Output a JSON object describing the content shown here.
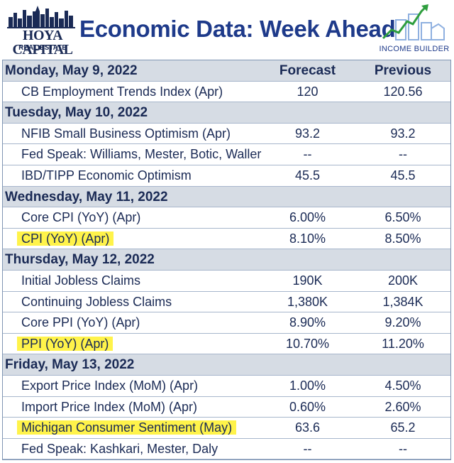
{
  "header": {
    "brand": "HOYA CAPITAL",
    "brand_sub": "REAL ESTATE",
    "title": "Economic Data: Week Ahead",
    "right_logo_label": "INCOME BUILDER"
  },
  "columns": {
    "forecast": "Forecast",
    "previous": "Previous"
  },
  "rows": [
    {
      "type": "day",
      "label": "Monday, May 9, 2022",
      "forecast": "Forecast",
      "previous": "Previous"
    },
    {
      "type": "item",
      "label": "CB Employment Trends Index (Apr)",
      "forecast": "120",
      "previous": "120.56",
      "highlight": false
    },
    {
      "type": "day",
      "label": "Tuesday, May 10, 2022",
      "forecast": "",
      "previous": ""
    },
    {
      "type": "item",
      "label": "NFIB Small Business Optimism (Apr)",
      "forecast": "93.2",
      "previous": "93.2",
      "highlight": false
    },
    {
      "type": "item",
      "label": "Fed Speak: Williams, Mester, Botic, Waller",
      "forecast": "--",
      "previous": "--",
      "highlight": false
    },
    {
      "type": "item",
      "label": "IBD/TIPP Economic Optimism",
      "forecast": "45.5",
      "previous": "45.5",
      "highlight": false
    },
    {
      "type": "day",
      "label": "Wednesday, May 11, 2022",
      "forecast": "",
      "previous": ""
    },
    {
      "type": "item",
      "label": "Core CPI (YoY) (Apr)",
      "forecast": "6.00%",
      "previous": "6.50%",
      "highlight": false
    },
    {
      "type": "item",
      "label": "CPI (YoY) (Apr)",
      "forecast": "8.10%",
      "previous": "8.50%",
      "highlight": true
    },
    {
      "type": "day",
      "label": "Thursday, May 12, 2022",
      "forecast": "",
      "previous": ""
    },
    {
      "type": "item",
      "label": "Initial Jobless Claims",
      "forecast": "190K",
      "previous": "200K",
      "highlight": false
    },
    {
      "type": "item",
      "label": "Continuing Jobless Claims",
      "forecast": "1,380K",
      "previous": "1,384K",
      "highlight": false
    },
    {
      "type": "item",
      "label": "Core PPI (YoY) (Apr)",
      "forecast": "8.90%",
      "previous": "9.20%",
      "highlight": false
    },
    {
      "type": "item",
      "label": "PPI (YoY) (Apr)",
      "forecast": "10.70%",
      "previous": "11.20%",
      "highlight": true
    },
    {
      "type": "day",
      "label": "Friday, May 13, 2022",
      "forecast": "",
      "previous": ""
    },
    {
      "type": "item",
      "label": "Export Price Index (MoM) (Apr)",
      "forecast": "1.00%",
      "previous": "4.50%",
      "highlight": false
    },
    {
      "type": "item",
      "label": "Import Price Index (MoM) (Apr)",
      "forecast": "0.60%",
      "previous": "2.60%",
      "highlight": false
    },
    {
      "type": "item",
      "label": "Michigan Consumer Sentiment (May)",
      "forecast": "63.6",
      "previous": "65.2",
      "highlight": true
    },
    {
      "type": "item",
      "label": "Fed Speak: Kashkari, Mester, Daly",
      "forecast": "--",
      "previous": "--",
      "highlight": false
    }
  ],
  "colors": {
    "title": "#1e3a8a",
    "day_row_bg": "#d6dce4",
    "highlight": "#fff34a",
    "text": "#1a2a55"
  }
}
